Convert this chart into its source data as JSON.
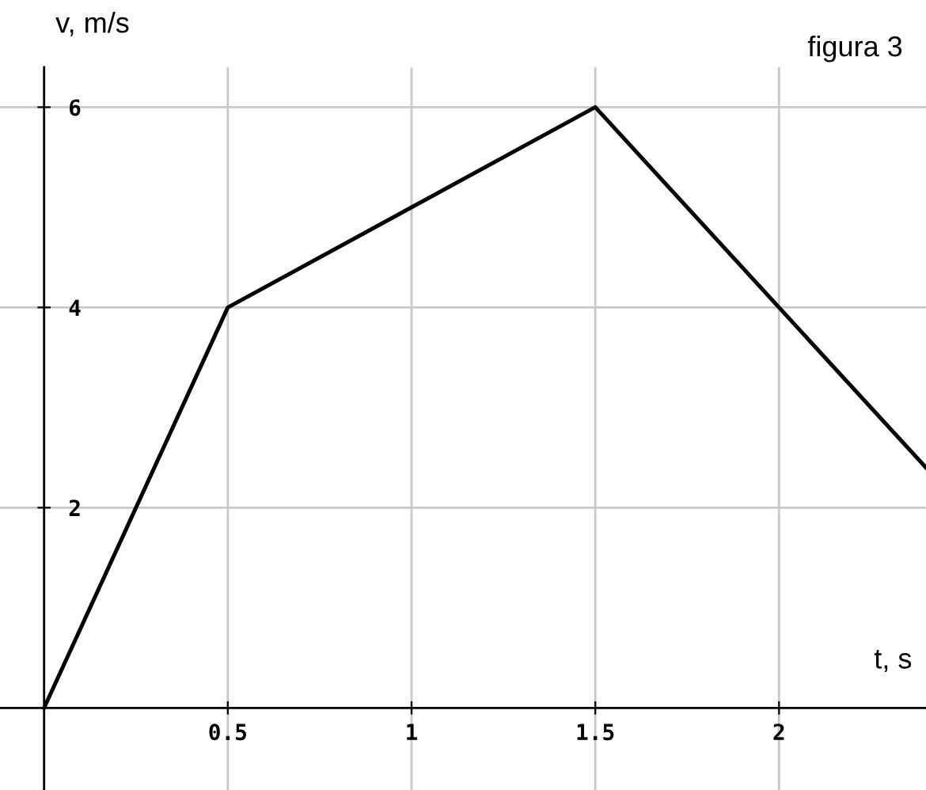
{
  "chart_data": {
    "type": "line",
    "xlabel": "t, s",
    "ylabel": "v, m/s",
    "annotations": [
      "figura 3"
    ],
    "x": [
      0,
      0.5,
      1.5,
      2.4
    ],
    "series": [
      {
        "color": "#000000",
        "values": [
          0,
          4,
          6,
          2.4
        ]
      }
    ],
    "xlim": [
      -0.12,
      2.4
    ],
    "ylim": [
      -0.82,
      6.4
    ],
    "xticks": [
      0.5,
      1,
      1.5,
      2
    ],
    "yticks": [
      2,
      4,
      6
    ],
    "grid": true
  }
}
